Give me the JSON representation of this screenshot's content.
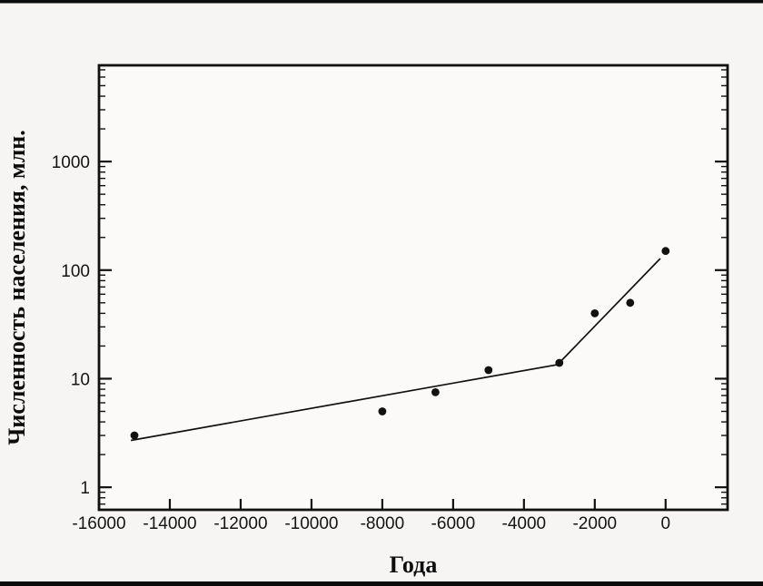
{
  "window": {
    "top_border_color": "#0b0b0b",
    "bottom_border_color": "#0b0b0b",
    "background_color": "#f6f5f4"
  },
  "chart_data": {
    "type": "scatter",
    "title": "",
    "xlabel": "Года",
    "ylabel": "Численность населения, млн.",
    "y_scale": "log",
    "xlim": [
      -16000,
      1750
    ],
    "ylim": [
      0.62,
      7700
    ],
    "x_ticks": [
      -16000,
      -14000,
      -12000,
      -10000,
      -8000,
      -6000,
      -4000,
      -2000,
      0
    ],
    "y_ticks": [
      1,
      10,
      100,
      1000
    ],
    "grid": false,
    "legend": "none",
    "points": [
      {
        "x": -15000,
        "y": 3
      },
      {
        "x": -8000,
        "y": 5
      },
      {
        "x": -6500,
        "y": 7.5
      },
      {
        "x": -5000,
        "y": 12
      },
      {
        "x": -3000,
        "y": 14
      },
      {
        "x": -2000,
        "y": 40
      },
      {
        "x": -1000,
        "y": 50
      },
      {
        "x": 0,
        "y": 150
      }
    ],
    "trend_line": [
      {
        "x": -15100,
        "y": 2.7
      },
      {
        "x": -3050,
        "y": 13.5
      },
      {
        "x": -150,
        "y": 128
      }
    ],
    "colors": {
      "marker": "#111111",
      "trend_line": "#111111",
      "frame": "#111111",
      "plot_background": "#fbfaf9",
      "tick_label": "#141414"
    }
  }
}
